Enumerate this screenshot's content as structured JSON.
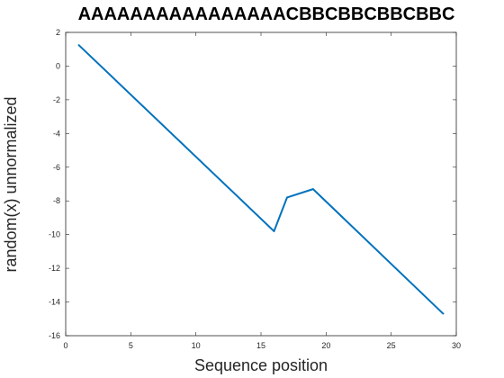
{
  "chart_data": {
    "type": "line",
    "title": "AAAAAAAAAAAAAAAACBBCBBCBBCBBC",
    "xlabel": "Sequence position",
    "ylabel": "random(x) unnormalized",
    "xlim": [
      0,
      30
    ],
    "ylim": [
      -16,
      2
    ],
    "xticks": [
      0,
      5,
      10,
      15,
      20,
      25,
      30
    ],
    "yticks": [
      -16,
      -14,
      -12,
      -10,
      -8,
      -6,
      -4,
      -2,
      0,
      2
    ],
    "grid": false,
    "line_color": "#0072BD",
    "series": [
      {
        "x": [
          1,
          16,
          17,
          19,
          29
        ],
        "y": [
          1.25,
          -9.8,
          -7.8,
          -7.3,
          -14.7
        ]
      }
    ]
  }
}
